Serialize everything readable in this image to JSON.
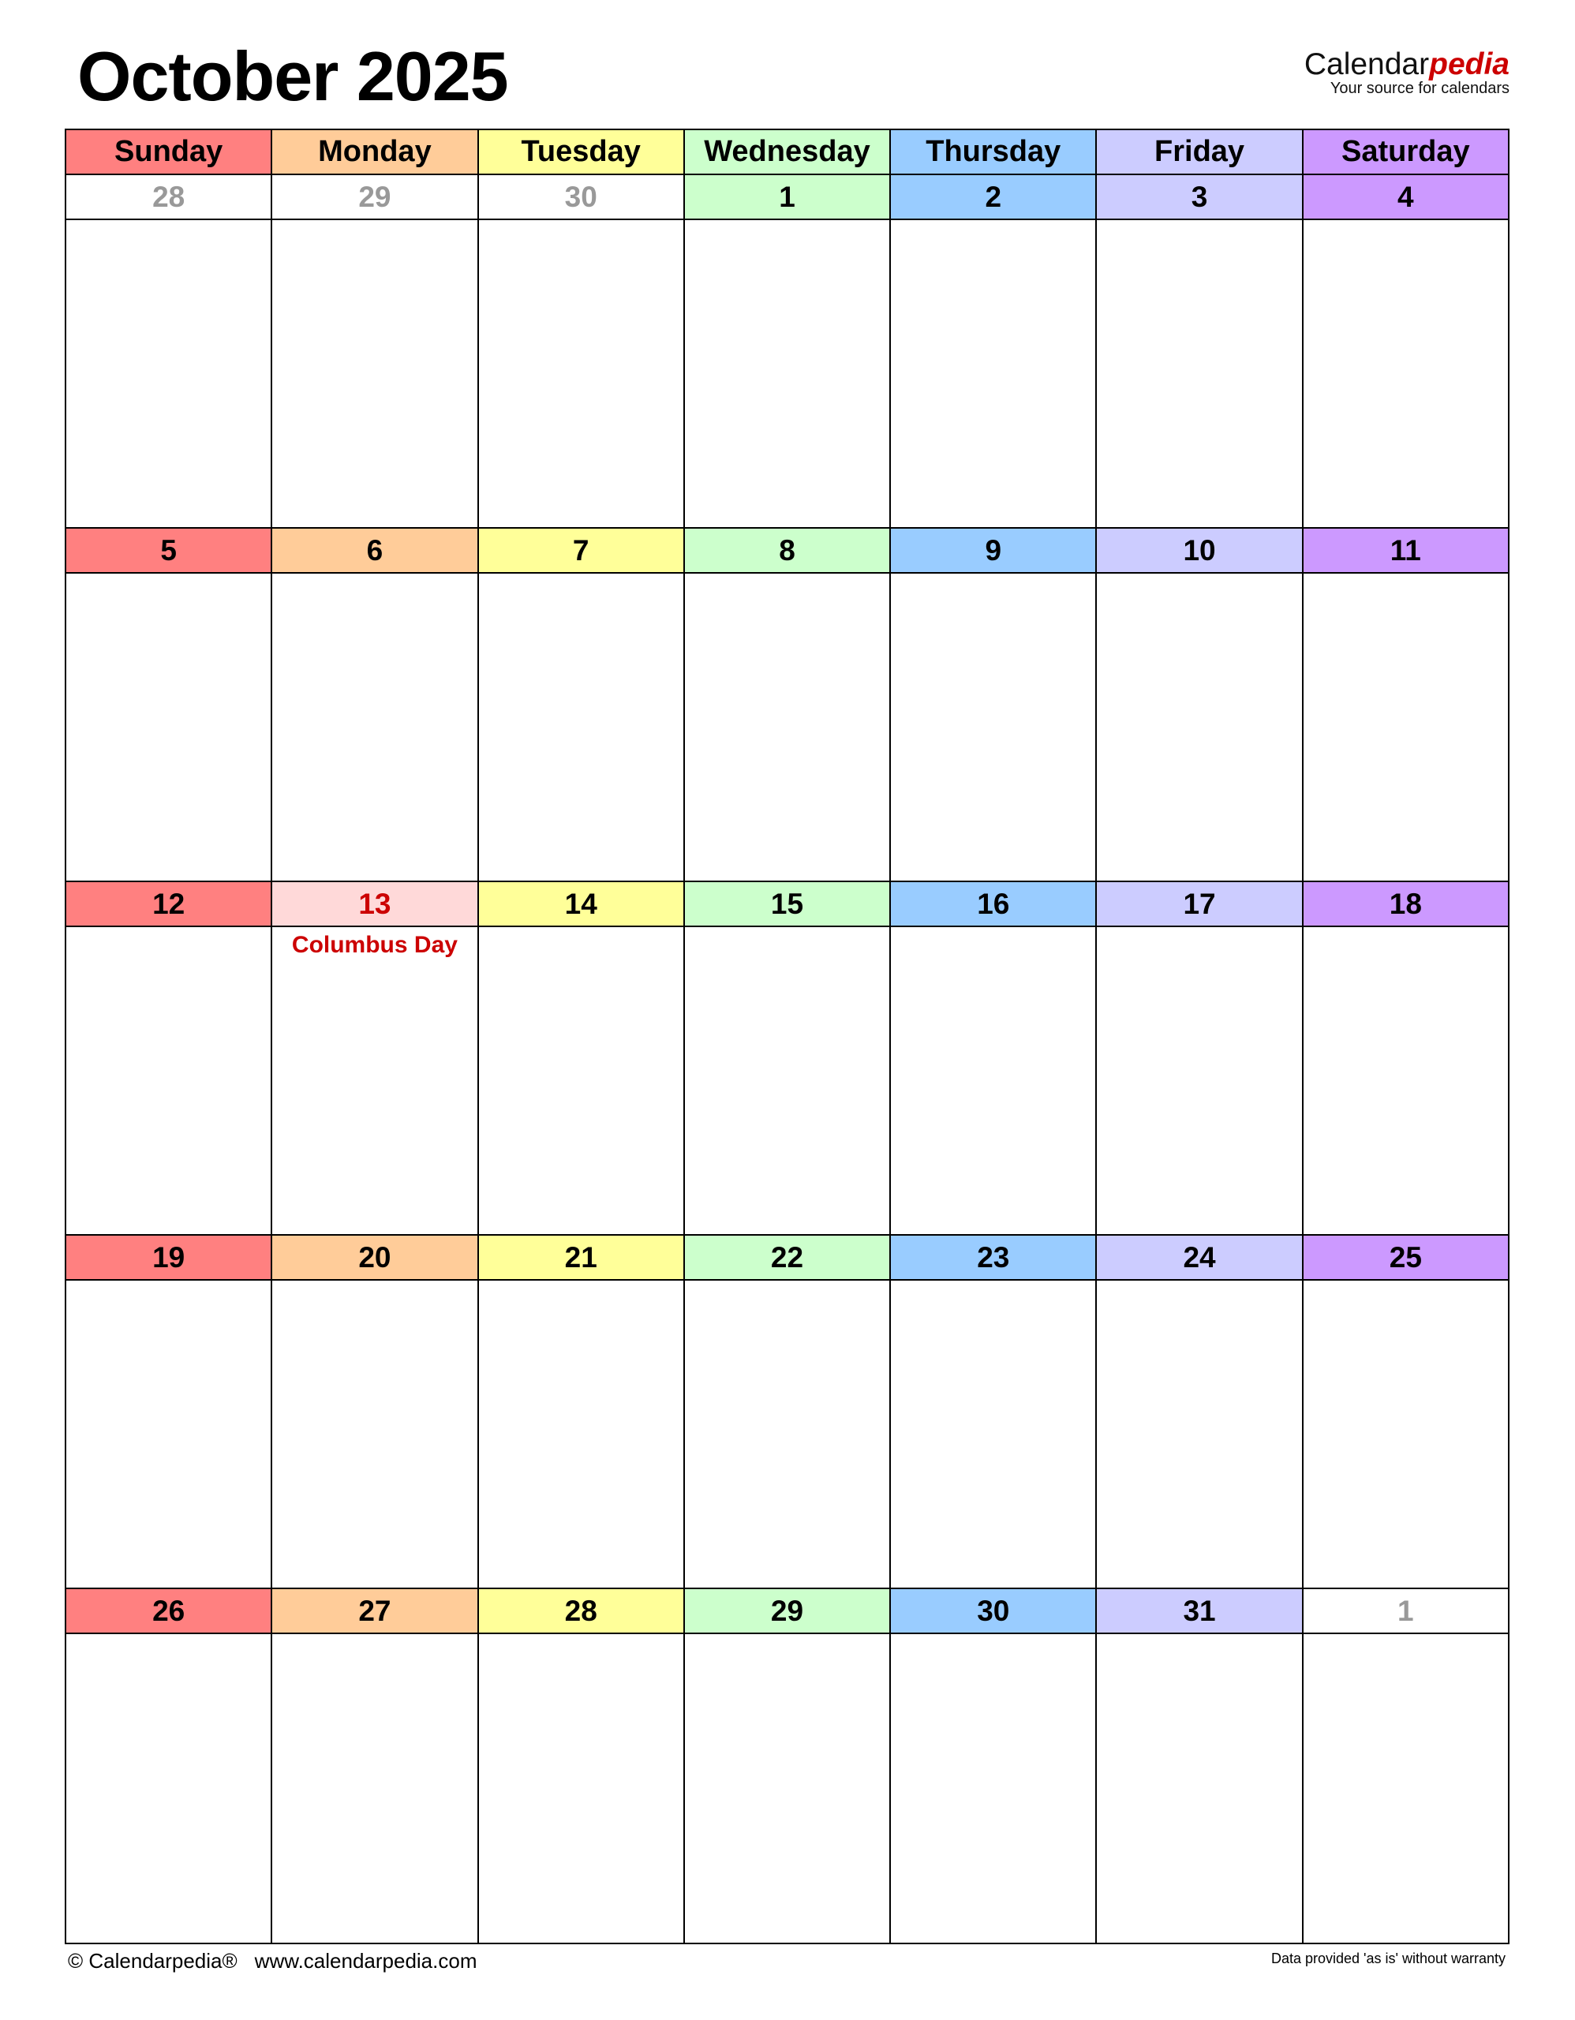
{
  "title": "October 2025",
  "logo": {
    "brand_main": "Calendar",
    "brand_accent": "pedia",
    "tagline": "Your source for calendars"
  },
  "colors": {
    "weekday_colors": [
      "#FF8080",
      "#FFCC99",
      "#FFFF99",
      "#CCFFCC",
      "#99CCFF",
      "#CCCCFF",
      "#CC99FF"
    ],
    "holiday_fill": "#FFD9D9",
    "holiday_text": "#CC0000",
    "muted_text": "#999999"
  },
  "weekdays": [
    "Sunday",
    "Monday",
    "Tuesday",
    "Wednesday",
    "Thursday",
    "Friday",
    "Saturday"
  ],
  "weeks": [
    [
      {
        "day": "28",
        "muted": true
      },
      {
        "day": "29",
        "muted": true
      },
      {
        "day": "30",
        "muted": true
      },
      {
        "day": "1"
      },
      {
        "day": "2"
      },
      {
        "day": "3"
      },
      {
        "day": "4"
      }
    ],
    [
      {
        "day": "5"
      },
      {
        "day": "6"
      },
      {
        "day": "7"
      },
      {
        "day": "8"
      },
      {
        "day": "9"
      },
      {
        "day": "10"
      },
      {
        "day": "11"
      }
    ],
    [
      {
        "day": "12"
      },
      {
        "day": "13",
        "holiday": "Columbus Day"
      },
      {
        "day": "14"
      },
      {
        "day": "15"
      },
      {
        "day": "16"
      },
      {
        "day": "17"
      },
      {
        "day": "18"
      }
    ],
    [
      {
        "day": "19"
      },
      {
        "day": "20"
      },
      {
        "day": "21"
      },
      {
        "day": "22"
      },
      {
        "day": "23"
      },
      {
        "day": "24"
      },
      {
        "day": "25"
      }
    ],
    [
      {
        "day": "26"
      },
      {
        "day": "27"
      },
      {
        "day": "28"
      },
      {
        "day": "29"
      },
      {
        "day": "30"
      },
      {
        "day": "31"
      },
      {
        "day": "1",
        "muted": true
      }
    ]
  ],
  "footer": {
    "copyright": "© Calendarpedia®",
    "url": "www.calendarpedia.com",
    "disclaimer": "Data provided 'as is' without warranty"
  }
}
